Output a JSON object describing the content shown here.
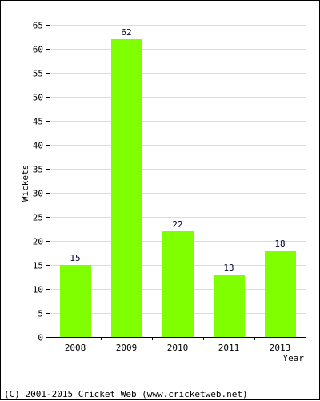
{
  "chart_data": {
    "type": "bar",
    "title": "",
    "xlabel": "Year",
    "ylabel": "Wickets",
    "categories": [
      "2008",
      "2009",
      "2010",
      "2011",
      "2013"
    ],
    "values": [
      15,
      62,
      22,
      13,
      18
    ],
    "ylim": [
      0,
      65
    ],
    "yticks": [
      0,
      5,
      10,
      15,
      20,
      25,
      30,
      35,
      40,
      45,
      50,
      55,
      60,
      65
    ],
    "grid": true,
    "bar_color": "#80ff00"
  },
  "footer": {
    "copyright": "(C) 2001-2015 Cricket Web (www.cricketweb.net)"
  }
}
